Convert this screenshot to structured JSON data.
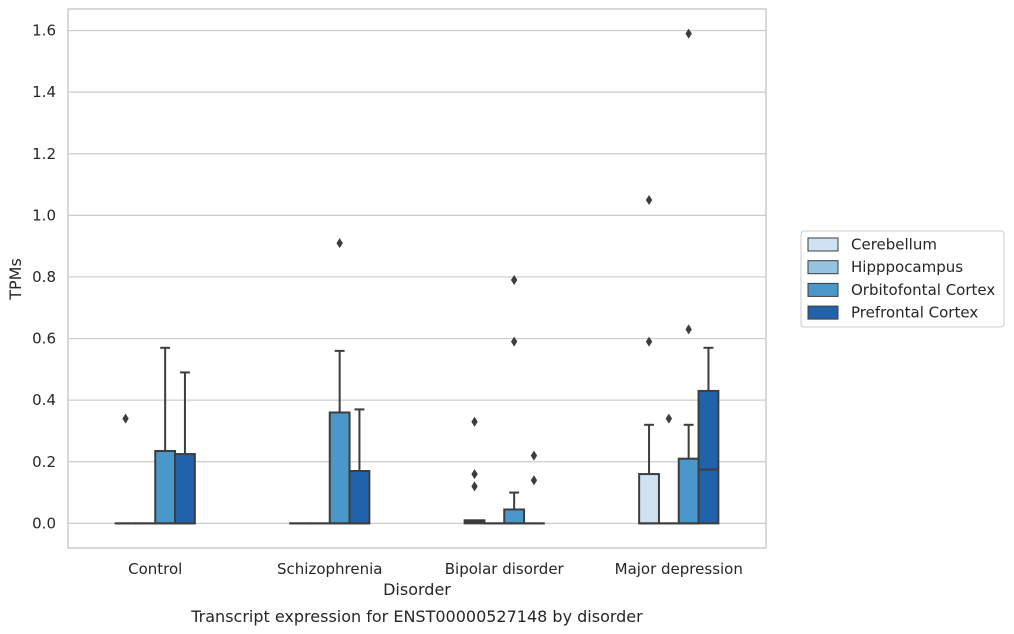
{
  "chart_data": {
    "type": "box",
    "caption": "Transcript expression for ENST00000527148 by disorder",
    "xlabel": "Disorder",
    "ylabel": "TPMs",
    "ylim": [
      -0.08,
      1.67
    ],
    "yticks": [
      "0.0",
      "0.2",
      "0.4",
      "0.6",
      "0.8",
      "1.0",
      "1.2",
      "1.4",
      "1.6"
    ],
    "ytick_values": [
      0,
      0.2,
      0.4,
      0.6,
      0.8,
      1.0,
      1.2,
      1.4,
      1.6
    ],
    "grid": "horizontal",
    "legend_position": "right",
    "categories": [
      "Control",
      "Schizophrenia",
      "Bipolar disorder",
      "Major depression"
    ],
    "series": [
      {
        "name": "Cerebellum",
        "color": "#d0e1f2",
        "boxes": [
          {
            "q1": 0,
            "median": 0,
            "q3": 0,
            "whisker_low": 0,
            "whisker_high": 0,
            "outliers": [
              0.34
            ]
          },
          {
            "q1": 0,
            "median": 0,
            "q3": 0,
            "whisker_low": 0,
            "whisker_high": 0,
            "outliers": []
          },
          {
            "q1": 0,
            "median": 0.005,
            "q3": 0.01,
            "whisker_low": 0,
            "whisker_high": 0.01,
            "outliers": [
              0.12,
              0.16,
              0.33
            ]
          },
          {
            "q1": 0,
            "median": 0,
            "q3": 0.16,
            "whisker_low": 0,
            "whisker_high": 0.32,
            "outliers": [
              0.59,
              1.05
            ]
          }
        ]
      },
      {
        "name": "Hipppocampus",
        "color": "#94c4df",
        "boxes": [
          {
            "q1": 0,
            "median": 0,
            "q3": 0,
            "whisker_low": 0,
            "whisker_high": 0,
            "outliers": []
          },
          {
            "q1": 0,
            "median": 0,
            "q3": 0,
            "whisker_low": 0,
            "whisker_high": 0,
            "outliers": []
          },
          {
            "q1": 0,
            "median": 0,
            "q3": 0,
            "whisker_low": 0,
            "whisker_high": 0,
            "outliers": []
          },
          {
            "q1": 0,
            "median": 0,
            "q3": 0,
            "whisker_low": 0,
            "whisker_high": 0,
            "outliers": [
              0.34
            ]
          }
        ]
      },
      {
        "name": "Orbitofontal Cortex",
        "color": "#4a98c9",
        "boxes": [
          {
            "q1": 0,
            "median": 0,
            "q3": 0.235,
            "whisker_low": 0,
            "whisker_high": 0.57,
            "outliers": []
          },
          {
            "q1": 0,
            "median": 0,
            "q3": 0.36,
            "whisker_low": 0,
            "whisker_high": 0.56,
            "outliers": [
              0.91
            ]
          },
          {
            "q1": 0,
            "median": 0,
            "q3": 0.045,
            "whisker_low": 0,
            "whisker_high": 0.1,
            "outliers": [
              0.59,
              0.79
            ]
          },
          {
            "q1": 0,
            "median": 0,
            "q3": 0.21,
            "whisker_low": 0,
            "whisker_high": 0.32,
            "outliers": [
              0.63,
              1.59
            ]
          }
        ]
      },
      {
        "name": "Prefrontal Cortex",
        "color": "#2163aa",
        "boxes": [
          {
            "q1": 0,
            "median": 0,
            "q3": 0.225,
            "whisker_low": 0,
            "whisker_high": 0.49,
            "outliers": []
          },
          {
            "q1": 0,
            "median": 0,
            "q3": 0.17,
            "whisker_low": 0,
            "whisker_high": 0.37,
            "outliers": []
          },
          {
            "q1": 0,
            "median": 0,
            "q3": 0,
            "whisker_low": 0,
            "whisker_high": 0,
            "outliers": [
              0.14,
              0.22
            ]
          },
          {
            "q1": 0,
            "median": 0.175,
            "q3": 0.43,
            "whisker_low": 0,
            "whisker_high": 0.57,
            "outliers": []
          }
        ]
      }
    ]
  }
}
